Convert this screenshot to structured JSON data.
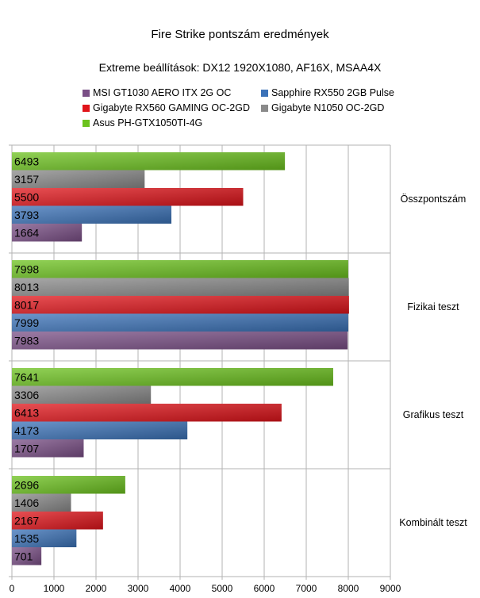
{
  "chart_data": {
    "type": "bar",
    "orientation": "horizontal",
    "title": "Fire Strike pontszám eredmények",
    "subtitle": "Extreme beállítások: DX12 1920X1080, AF16X, MSAA4X",
    "categories": [
      "Összpontszám",
      "Fizikai teszt",
      "Grafikus teszt",
      "Kombinált teszt"
    ],
    "series": [
      {
        "name": "MSI GT1030 AERO ITX 2G OC",
        "color": "#7a4f86",
        "values": [
          1664,
          7983,
          1707,
          701
        ]
      },
      {
        "name": "Sapphire RX550 2GB Pulse",
        "color": "#3b72b8",
        "values": [
          3793,
          7999,
          4173,
          1535
        ]
      },
      {
        "name": "Gigabyte RX560 GAMING OC-2GD",
        "color": "#e0141a",
        "values": [
          5500,
          8017,
          6413,
          2167
        ]
      },
      {
        "name": "Gigabyte N1050 OC-2GD",
        "color": "#8a8a8a",
        "values": [
          3157,
          8013,
          3306,
          1406
        ]
      },
      {
        "name": "Asus PH-GTX1050TI-4G",
        "color": "#6cc21e",
        "values": [
          6493,
          7998,
          7641,
          2696
        ]
      }
    ],
    "xlim": [
      0,
      9000
    ],
    "xticks": [
      "0",
      "1000",
      "2000",
      "3000",
      "4000",
      "5000",
      "6000",
      "7000",
      "8000",
      "9000"
    ],
    "grid": true,
    "legend_position": "top"
  }
}
